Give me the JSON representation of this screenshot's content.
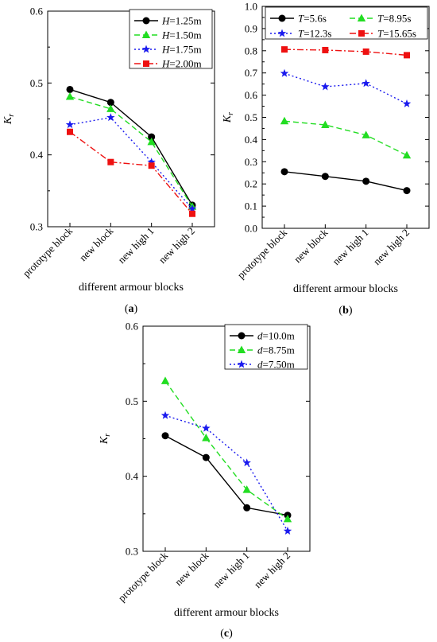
{
  "panels": [
    {
      "caption": "(a)",
      "chart_data": {
        "type": "line",
        "categories": [
          "prototype block",
          "new block",
          "new high 1",
          "new high 2"
        ],
        "xlabel": "different armour blocks",
        "ylabel_main": "K",
        "ylabel_sub": "r",
        "ylim": [
          0.3,
          0.6
        ],
        "yticks": [
          "0.3",
          "0.4",
          "0.5",
          "0.6"
        ],
        "grid": false,
        "legend_position": "top-right",
        "series": [
          {
            "var": "H",
            "text": "=1.25m",
            "color": "#000000",
            "dash": "",
            "marker": "circle",
            "values": [
              0.491,
              0.473,
              0.425,
              0.33
            ]
          },
          {
            "var": "H",
            "text": "=1.50m",
            "color": "#22dd22",
            "dash": "7 4",
            "marker": "triangle",
            "values": [
              0.481,
              0.464,
              0.418,
              0.328
            ]
          },
          {
            "var": "H",
            "text": "=1.75m",
            "color": "#1a1aee",
            "dash": "2 3",
            "marker": "star",
            "values": [
              0.442,
              0.452,
              0.39,
              0.325
            ]
          },
          {
            "var": "H",
            "text": "=2.00m",
            "color": "#ee1111",
            "dash": "8 3 2 3",
            "marker": "square",
            "values": [
              0.432,
              0.39,
              0.385,
              0.318
            ]
          }
        ]
      }
    },
    {
      "caption": "(b)",
      "chart_data": {
        "type": "line",
        "categories": [
          "prototype block",
          "new block",
          "new high 1",
          "new high 2"
        ],
        "xlabel": "different armour blocks",
        "ylabel_main": "K",
        "ylabel_sub": "r",
        "ylim": [
          0.0,
          1.0
        ],
        "yticks": [
          "0.0",
          "0.1",
          "0.2",
          "0.3",
          "0.4",
          "0.5",
          "0.6",
          "0.7",
          "0.8",
          "0.9",
          "1.0"
        ],
        "grid": false,
        "legend_position": "top",
        "series": [
          {
            "var": "T",
            "text": "=5.6s",
            "color": "#000000",
            "dash": "",
            "marker": "circle",
            "values": [
              0.255,
              0.234,
              0.212,
              0.17
            ]
          },
          {
            "var": "T",
            "text": "=8.95s",
            "color": "#22dd22",
            "dash": "7 4",
            "marker": "triangle",
            "values": [
              0.483,
              0.466,
              0.42,
              0.329
            ]
          },
          {
            "var": "T",
            "text": "=12.3s",
            "color": "#1a1aee",
            "dash": "2 3",
            "marker": "star",
            "values": [
              0.698,
              0.638,
              0.653,
              0.561
            ]
          },
          {
            "var": "T",
            "text": "=15.65s",
            "color": "#ee1111",
            "dash": "8 3 2 3",
            "marker": "square",
            "values": [
              0.806,
              0.803,
              0.796,
              0.78
            ]
          }
        ]
      }
    },
    {
      "caption": "(c)",
      "chart_data": {
        "type": "line",
        "categories": [
          "prototype block",
          "new block",
          "new high 1",
          "new high 2"
        ],
        "xlabel": "different armour blocks",
        "ylabel_main": "K",
        "ylabel_sub": "r",
        "ylim": [
          0.3,
          0.6
        ],
        "yticks": [
          "0.3",
          "0.4",
          "0.5",
          "0.6"
        ],
        "grid": false,
        "legend_position": "top-right",
        "series": [
          {
            "var": "d",
            "text": "=10.0m",
            "color": "#000000",
            "dash": "",
            "marker": "circle",
            "values": [
              0.454,
              0.425,
              0.358,
              0.348
            ]
          },
          {
            "var": "d",
            "text": "=8.75m",
            "color": "#22dd22",
            "dash": "7 4",
            "marker": "triangle",
            "values": [
              0.527,
              0.451,
              0.382,
              0.343
            ]
          },
          {
            "var": "d",
            "text": "=7.50m",
            "color": "#1a1aee",
            "dash": "2 3",
            "marker": "star",
            "values": [
              0.481,
              0.464,
              0.418,
              0.327
            ]
          }
        ]
      }
    }
  ]
}
